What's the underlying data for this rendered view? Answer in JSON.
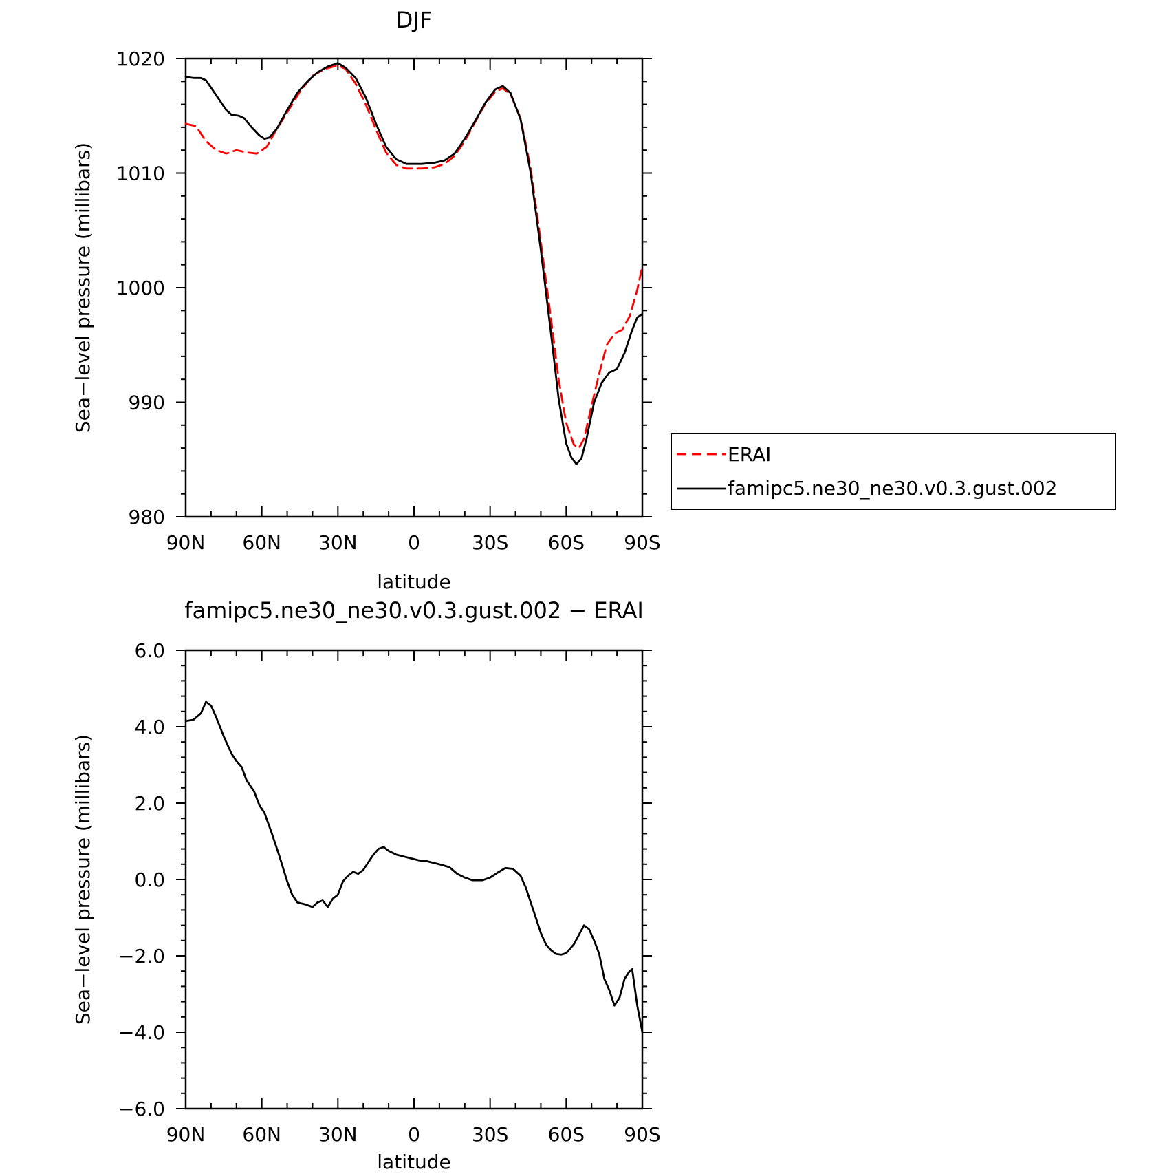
{
  "chart_data": [
    {
      "type": "line",
      "title": "DJF",
      "xlabel": "latitude",
      "ylabel": "Sea−level pressure (millibars)",
      "xlim": [
        90,
        -90
      ],
      "ylim": [
        980,
        1020
      ],
      "x_ticks": [
        {
          "value": 90,
          "label": "90N"
        },
        {
          "value": 60,
          "label": "60N"
        },
        {
          "value": 30,
          "label": "30N"
        },
        {
          "value": 0,
          "label": "0"
        },
        {
          "value": -30,
          "label": "30S"
        },
        {
          "value": -60,
          "label": "60S"
        },
        {
          "value": -90,
          "label": "90S"
        }
      ],
      "y_ticks": [
        {
          "value": 1020,
          "label": "1020"
        },
        {
          "value": 1010,
          "label": "1010"
        },
        {
          "value": 1000,
          "label": "1000"
        },
        {
          "value": 990,
          "label": "990"
        },
        {
          "value": 980,
          "label": "980"
        }
      ],
      "legend_position": "right",
      "series": [
        {
          "name": "ERAI",
          "color": "#ff0000",
          "dash": "dashed",
          "points": [
            [
              90,
              1014.3
            ],
            [
              86,
              1014.1
            ],
            [
              82,
              1012.8
            ],
            [
              78,
              1012.0
            ],
            [
              74,
              1011.7
            ],
            [
              70,
              1012.0
            ],
            [
              66,
              1011.8
            ],
            [
              62,
              1011.7
            ],
            [
              58,
              1012.3
            ],
            [
              55,
              1013.5
            ],
            [
              50,
              1015.3
            ],
            [
              45,
              1017.1
            ],
            [
              40,
              1018.5
            ],
            [
              35,
              1019.1
            ],
            [
              30,
              1019.4
            ],
            [
              27,
              1019.1
            ],
            [
              23,
              1017.8
            ],
            [
              19,
              1016.0
            ],
            [
              15,
              1013.8
            ],
            [
              11,
              1011.8
            ],
            [
              7,
              1010.7
            ],
            [
              3,
              1010.4
            ],
            [
              -3,
              1010.4
            ],
            [
              -8,
              1010.5
            ],
            [
              -12,
              1010.8
            ],
            [
              -16,
              1011.5
            ],
            [
              -20,
              1012.8
            ],
            [
              -24,
              1014.4
            ],
            [
              -28,
              1016.0
            ],
            [
              -32,
              1017.1
            ],
            [
              -35,
              1017.4
            ],
            [
              -38,
              1016.9
            ],
            [
              -42,
              1014.8
            ],
            [
              -46,
              1010.4
            ],
            [
              -50,
              1004.0
            ],
            [
              -54,
              997.3
            ],
            [
              -57,
              992.0
            ],
            [
              -60,
              988.2
            ],
            [
              -63,
              986.3
            ],
            [
              -65,
              986.0
            ],
            [
              -67,
              986.8
            ],
            [
              -70,
              989.7
            ],
            [
              -73,
              992.5
            ],
            [
              -76,
              995.0
            ],
            [
              -79,
              996.0
            ],
            [
              -82,
              996.3
            ],
            [
              -85,
              997.5
            ],
            [
              -88,
              999.8
            ],
            [
              -90,
              1001.9
            ]
          ]
        },
        {
          "name": "famipc5.ne30_ne30.v0.3.gust.002",
          "color": "#000000",
          "dash": "solid",
          "points": [
            [
              90,
              1018.4
            ],
            [
              87,
              1018.3
            ],
            [
              84,
              1018.3
            ],
            [
              82,
              1018.1
            ],
            [
              78,
              1016.8
            ],
            [
              74,
              1015.5
            ],
            [
              72,
              1015.1
            ],
            [
              69,
              1015.0
            ],
            [
              67,
              1014.8
            ],
            [
              64,
              1014.0
            ],
            [
              61,
              1013.3
            ],
            [
              59,
              1013.0
            ],
            [
              57,
              1013.1
            ],
            [
              54,
              1013.9
            ],
            [
              50,
              1015.5
            ],
            [
              46,
              1017.0
            ],
            [
              42,
              1018.0
            ],
            [
              38,
              1018.8
            ],
            [
              34,
              1019.3
            ],
            [
              30,
              1019.6
            ],
            [
              27,
              1019.2
            ],
            [
              23,
              1018.3
            ],
            [
              19,
              1016.6
            ],
            [
              15,
              1014.3
            ],
            [
              11,
              1012.3
            ],
            [
              7,
              1011.2
            ],
            [
              3,
              1010.8
            ],
            [
              -3,
              1010.8
            ],
            [
              -8,
              1010.9
            ],
            [
              -12,
              1011.1
            ],
            [
              -16,
              1011.7
            ],
            [
              -20,
              1013.0
            ],
            [
              -24,
              1014.5
            ],
            [
              -28,
              1016.1
            ],
            [
              -32,
              1017.3
            ],
            [
              -35,
              1017.6
            ],
            [
              -38,
              1017.0
            ],
            [
              -42,
              1014.7
            ],
            [
              -46,
              1010.0
            ],
            [
              -50,
              1003.3
            ],
            [
              -54,
              996.0
            ],
            [
              -57,
              990.3
            ],
            [
              -60,
              986.4
            ],
            [
              -62,
              985.2
            ],
            [
              -64,
              984.6
            ],
            [
              -66,
              985.1
            ],
            [
              -68,
              986.8
            ],
            [
              -71,
              990.0
            ],
            [
              -74,
              991.7
            ],
            [
              -77,
              992.6
            ],
            [
              -80,
              992.9
            ],
            [
              -83,
              994.3
            ],
            [
              -86,
              996.3
            ],
            [
              -88,
              997.4
            ],
            [
              -90,
              997.7
            ]
          ]
        }
      ]
    },
    {
      "type": "line",
      "title": "famipc5.ne30_ne30.v0.3.gust.002 − ERAI",
      "xlabel": "latitude",
      "ylabel": "Sea−level pressure (millibars)",
      "xlim": [
        90,
        -90
      ],
      "ylim": [
        -6.0,
        6.0
      ],
      "x_ticks": [
        {
          "value": 90,
          "label": "90N"
        },
        {
          "value": 60,
          "label": "60N"
        },
        {
          "value": 30,
          "label": "30N"
        },
        {
          "value": 0,
          "label": "0"
        },
        {
          "value": -30,
          "label": "30S"
        },
        {
          "value": -60,
          "label": "60S"
        },
        {
          "value": -90,
          "label": "90S"
        }
      ],
      "y_ticks": [
        {
          "value": 6,
          "label": "6.0"
        },
        {
          "value": 4,
          "label": "4.0"
        },
        {
          "value": 2,
          "label": "2.0"
        },
        {
          "value": 0,
          "label": "0.0"
        },
        {
          "value": -2,
          "label": "−2.0"
        },
        {
          "value": -4,
          "label": "−4.0"
        },
        {
          "value": -6,
          "label": "−6.0"
        }
      ],
      "series": [
        {
          "color": "#000000",
          "dash": "solid",
          "points": [
            [
              90,
              4.15
            ],
            [
              87,
              4.18
            ],
            [
              84,
              4.35
            ],
            [
              82,
              4.65
            ],
            [
              80,
              4.55
            ],
            [
              78,
              4.25
            ],
            [
              75,
              3.75
            ],
            [
              72,
              3.3
            ],
            [
              70,
              3.1
            ],
            [
              68,
              2.95
            ],
            [
              66,
              2.6
            ],
            [
              63,
              2.3
            ],
            [
              61,
              1.95
            ],
            [
              59,
              1.75
            ],
            [
              56,
              1.2
            ],
            [
              53,
              0.6
            ],
            [
              50,
              -0.05
            ],
            [
              48,
              -0.4
            ],
            [
              46,
              -0.6
            ],
            [
              43,
              -0.65
            ],
            [
              40,
              -0.72
            ],
            [
              38,
              -0.6
            ],
            [
              36,
              -0.55
            ],
            [
              34,
              -0.72
            ],
            [
              32,
              -0.5
            ],
            [
              30,
              -0.4
            ],
            [
              28,
              -0.05
            ],
            [
              26,
              0.1
            ],
            [
              24,
              0.2
            ],
            [
              22,
              0.15
            ],
            [
              20,
              0.25
            ],
            [
              18,
              0.45
            ],
            [
              16,
              0.65
            ],
            [
              14,
              0.8
            ],
            [
              12,
              0.85
            ],
            [
              10,
              0.75
            ],
            [
              7,
              0.65
            ],
            [
              4,
              0.6
            ],
            [
              1,
              0.55
            ],
            [
              -2,
              0.5
            ],
            [
              -5,
              0.48
            ],
            [
              -8,
              0.43
            ],
            [
              -11,
              0.38
            ],
            [
              -14,
              0.32
            ],
            [
              -17,
              0.15
            ],
            [
              -20,
              0.05
            ],
            [
              -23,
              -0.02
            ],
            [
              -27,
              -0.02
            ],
            [
              -30,
              0.05
            ],
            [
              -33,
              0.18
            ],
            [
              -36,
              0.3
            ],
            [
              -39,
              0.28
            ],
            [
              -42,
              0.1
            ],
            [
              -44,
              -0.2
            ],
            [
              -46,
              -0.6
            ],
            [
              -48,
              -1.0
            ],
            [
              -50,
              -1.4
            ],
            [
              -52,
              -1.7
            ],
            [
              -54,
              -1.85
            ],
            [
              -56,
              -1.95
            ],
            [
              -58,
              -1.97
            ],
            [
              -60,
              -1.93
            ],
            [
              -63,
              -1.7
            ],
            [
              -65,
              -1.45
            ],
            [
              -67,
              -1.2
            ],
            [
              -69,
              -1.3
            ],
            [
              -71,
              -1.6
            ],
            [
              -73,
              -1.95
            ],
            [
              -75,
              -2.6
            ],
            [
              -77,
              -2.9
            ],
            [
              -79,
              -3.3
            ],
            [
              -81,
              -3.1
            ],
            [
              -83,
              -2.6
            ],
            [
              -85,
              -2.4
            ],
            [
              -86,
              -2.35
            ],
            [
              -88,
              -3.3
            ],
            [
              -90,
              -4.0
            ]
          ]
        }
      ]
    }
  ]
}
